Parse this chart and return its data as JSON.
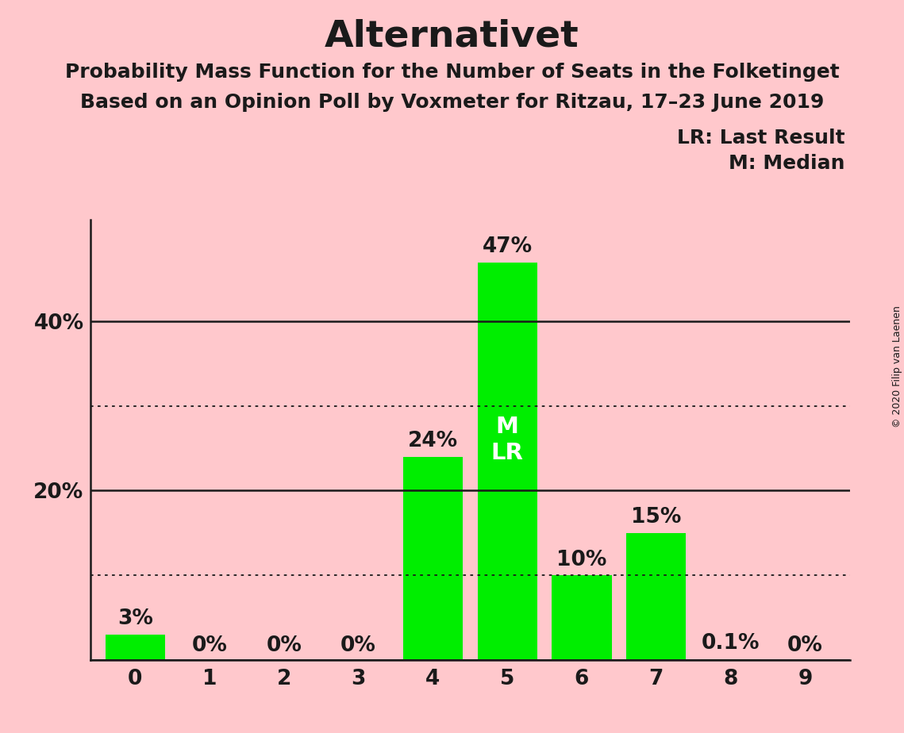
{
  "title": "Alternativet",
  "subtitle1": "Probability Mass Function for the Number of Seats in the Folketinget",
  "subtitle2": "Based on an Opinion Poll by Voxmeter for Ritzau, 17–23 June 2019",
  "categories": [
    0,
    1,
    2,
    3,
    4,
    5,
    6,
    7,
    8,
    9
  ],
  "values": [
    3,
    0,
    0,
    0,
    24,
    47,
    10,
    15,
    0.1,
    0
  ],
  "bar_color": "#00ee00",
  "background_color": "#ffc8cc",
  "solid_yticks": [
    0,
    20,
    40
  ],
  "dotted_yticks": [
    10,
    30
  ],
  "ylim": [
    0,
    52
  ],
  "median_bar": 5,
  "last_result_bar": 5,
  "bar_labels": [
    "3%",
    "0%",
    "0%",
    "0%",
    "24%",
    "47%",
    "10%",
    "15%",
    "0.1%",
    "0%"
  ],
  "legend_lr": "LR: Last Result",
  "legend_m": "M: Median",
  "copyright_text": "© 2020 Filip van Laenen",
  "title_fontsize": 34,
  "subtitle_fontsize": 18,
  "bar_label_fontsize": 19,
  "axis_tick_fontsize": 19,
  "legend_fontsize": 18,
  "median_lr_fontsize": 21,
  "copyright_fontsize": 9,
  "ytick_labels_map": {
    "0": "",
    "20": "20%",
    "40": "40%"
  }
}
